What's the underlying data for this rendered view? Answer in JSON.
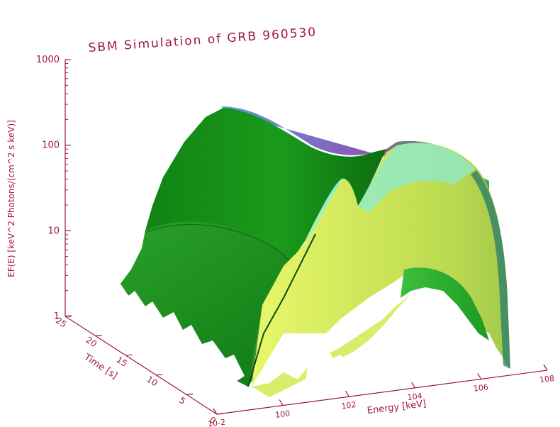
{
  "chart_data": {
    "type": "surface",
    "title": "SBM Simulation of GRB 960530",
    "zlabel": "EF(E) [keV^2 Photons/(cm^2 s keV)]",
    "xlabel": "Energy [keV]",
    "ylabel": "Time [s]",
    "z_scale": "log",
    "x_scale": "log",
    "z_ticks": [
      "1",
      "10",
      "100",
      "1000"
    ],
    "x_ticks": [
      "10-2",
      "100",
      "102",
      "104",
      "106",
      "108"
    ],
    "y_ticks": [
      "0",
      "5",
      "10",
      "15",
      "20",
      "25"
    ],
    "zlim": [
      1,
      1000
    ],
    "xlim_exponent": [
      -2,
      8
    ],
    "ylim": [
      0,
      25
    ],
    "colors": {
      "axis": "#a01838",
      "surface_dark": "#107f10",
      "surface_mid": "#2aa82a",
      "surface_light": "#c9e85a",
      "surface_cyan": "#7fe8e0",
      "surface_purple": "#8060c0"
    }
  }
}
